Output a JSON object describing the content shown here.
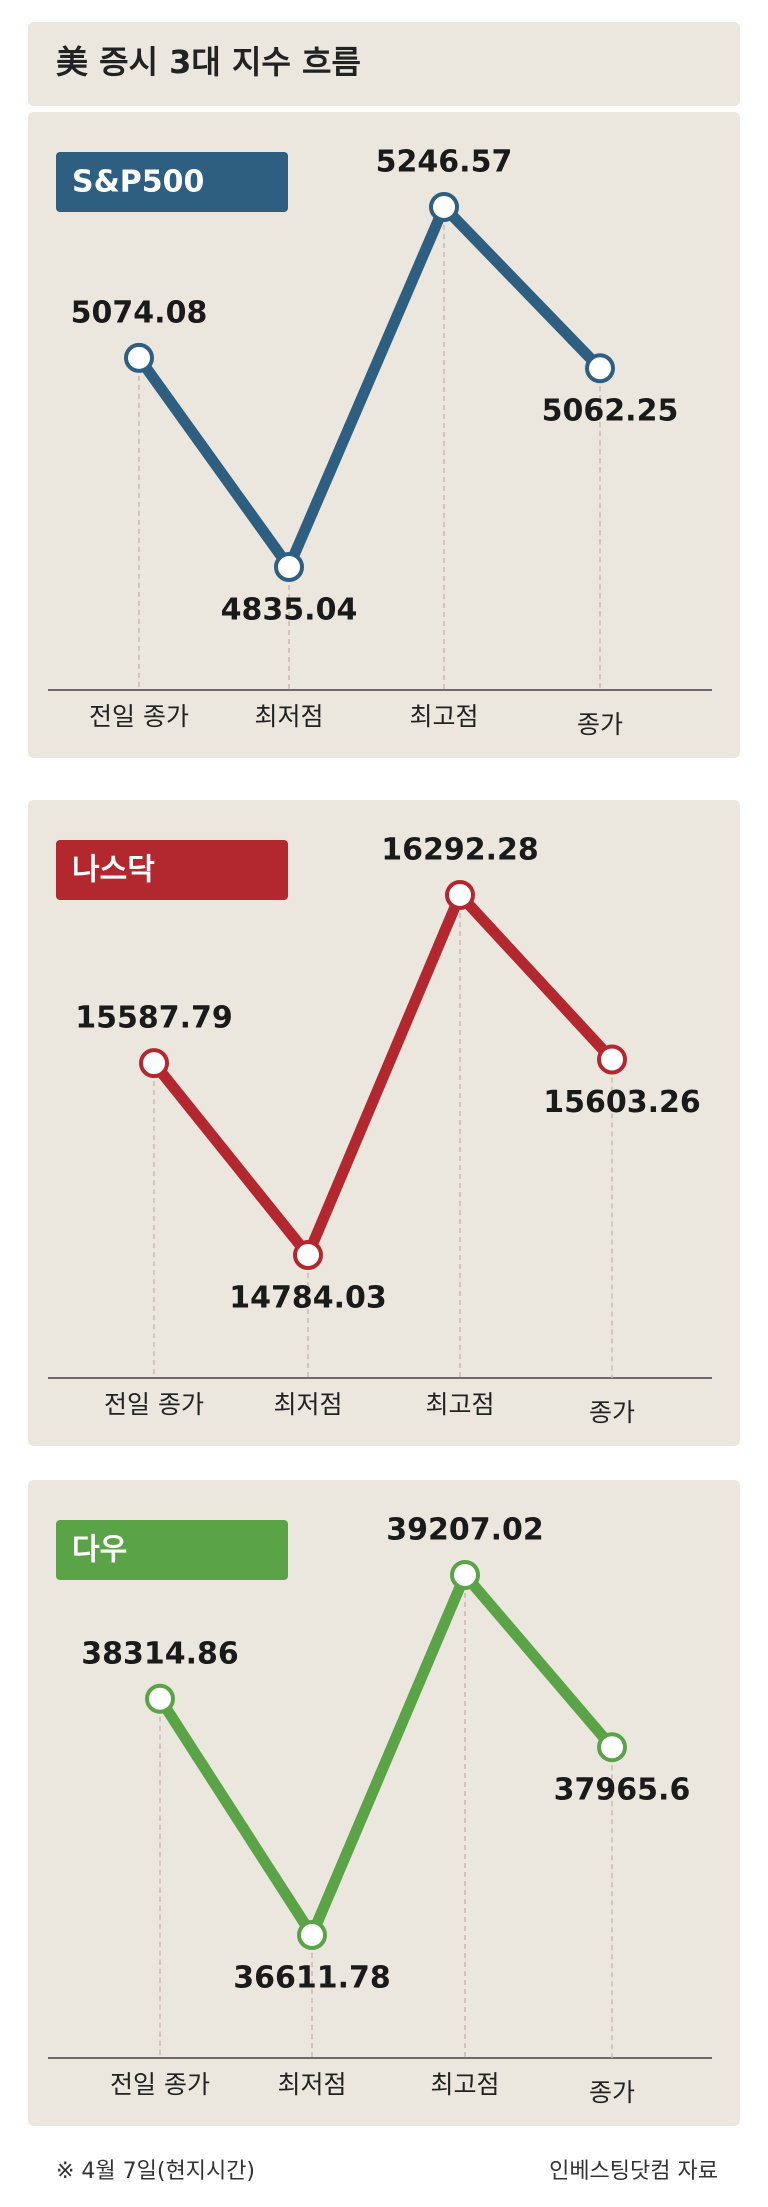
{
  "title": "美 증시 3대 지수 흐름",
  "chart_data": [
    {
      "type": "line",
      "title": "S&P500",
      "color": "#2e5f80",
      "categories": [
        "전일 종가",
        "최저점",
        "최고점",
        "종가"
      ],
      "values": [
        5074.08,
        4835.04,
        5246.57,
        5062.25
      ]
    },
    {
      "type": "line",
      "title": "나스닥",
      "color": "#b3272f",
      "categories": [
        "전일 종가",
        "최저점",
        "최고점",
        "종가"
      ],
      "values": [
        15587.79,
        14784.03,
        16292.28,
        15603.26
      ]
    },
    {
      "type": "line",
      "title": "다우",
      "color": "#5ba347",
      "categories": [
        "전일 종가",
        "최저점",
        "최고점",
        "종가"
      ],
      "values": [
        38314.86,
        36611.78,
        39207.02,
        37965.6
      ]
    }
  ],
  "note": "※ 4월 7일(현지시간)",
  "source": "인베스팅닷컴 자료"
}
